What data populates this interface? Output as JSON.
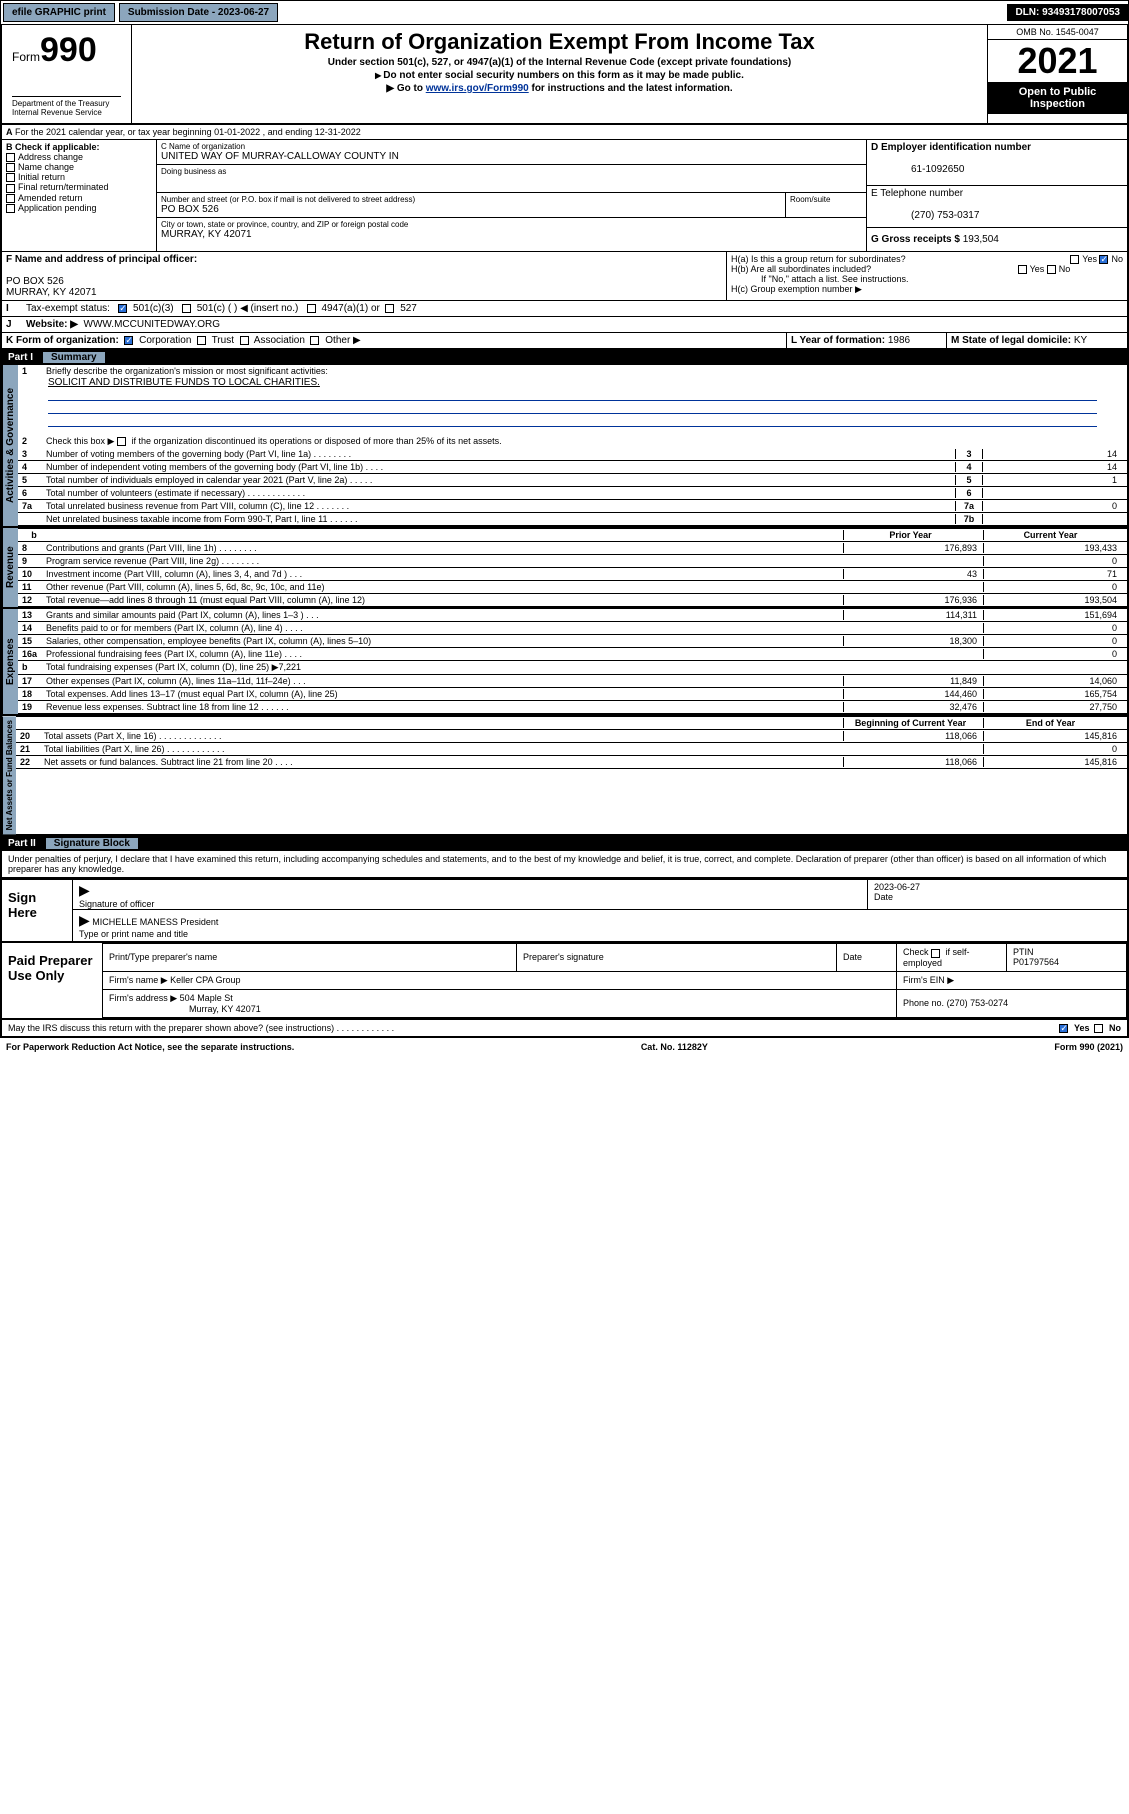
{
  "topbar": {
    "efile": "efile GRAPHIC print",
    "subdate_lbl": "Submission Date - 2023-06-27",
    "dln": "DLN: 93493178007053"
  },
  "header": {
    "form_word": "Form",
    "form_num": "990",
    "title": "Return of Organization Exempt From Income Tax",
    "sub1": "Under section 501(c), 527, or 4947(a)(1) of the Internal Revenue Code (except private foundations)",
    "sub2": "Do not enter social security numbers on this form as it may be made public.",
    "sub3_a": "Go to ",
    "sub3_link": "www.irs.gov/Form990",
    "sub3_b": " for instructions and the latest information.",
    "omb": "OMB No. 1545-0047",
    "year": "2021",
    "open": "Open to Public Inspection",
    "dept": "Department of the Treasury\nInternal Revenue Service"
  },
  "A": {
    "text": "For the 2021 calendar year, or tax year beginning 01-01-2022   , and ending 12-31-2022"
  },
  "B": {
    "label": "B Check if applicable:",
    "opts": [
      "Address change",
      "Name change",
      "Initial return",
      "Final return/terminated",
      "Amended return",
      "Application pending"
    ]
  },
  "C": {
    "name_lbl": "C Name of organization",
    "name": "UNITED WAY OF MURRAY-CALLOWAY COUNTY IN",
    "dba_lbl": "Doing business as",
    "street_lbl": "Number and street (or P.O. box if mail is not delivered to street address)",
    "room_lbl": "Room/suite",
    "street": "PO BOX 526",
    "city_lbl": "City or town, state or province, country, and ZIP or foreign postal code",
    "city": "MURRAY, KY  42071"
  },
  "D": {
    "lbl": "D Employer identification number",
    "val": "61-1092650"
  },
  "E": {
    "lbl": "E Telephone number",
    "val": "(270) 753-0317"
  },
  "G": {
    "lbl": "G Gross receipts $",
    "val": "193,504"
  },
  "F": {
    "lbl": "F Name and address of principal officer:",
    "l1": "PO BOX 526",
    "l2": "MURRAY, KY  42071"
  },
  "H": {
    "a": "H(a)  Is this a group return for subordinates?",
    "b": "H(b)  Are all subordinates included?",
    "note": "If \"No,\" attach a list. See instructions.",
    "c": "H(c)  Group exemption number ▶",
    "yes": "Yes",
    "no": "No"
  },
  "I": {
    "lbl": "Tax-exempt status:",
    "o1": "501(c)(3)",
    "o2": "501(c) (   ) ◀ (insert no.)",
    "o3": "4947(a)(1) or",
    "o4": "527"
  },
  "J": {
    "lbl": "Website: ▶",
    "val": "WWW.MCCUNITEDWAY.ORG"
  },
  "K": {
    "lbl": "K Form of organization:",
    "o1": "Corporation",
    "o2": "Trust",
    "o3": "Association",
    "o4": "Other ▶"
  },
  "L": {
    "lbl": "L Year of formation:",
    "val": "1986"
  },
  "M": {
    "lbl": "M State of legal domicile:",
    "val": "KY"
  },
  "part1": {
    "hdr": "Part I",
    "title": "Summary",
    "side_gov": "Activities & Governance",
    "side_rev": "Revenue",
    "side_exp": "Expenses",
    "side_net": "Net Assets or Fund Balances",
    "l1": "Briefly describe the organization's mission or most significant activities:",
    "l1v": "SOLICIT AND DISTRIBUTE FUNDS TO LOCAL CHARITIES.",
    "l2": "Check this box ▶        if the organization discontinued its operations or disposed of more than 25% of its net assets.",
    "lines_gov": [
      {
        "n": "3",
        "t": "Number of voting members of the governing body (Part VI, line 1a)  .   .   .   .   .   .   .   .",
        "b": "3",
        "v": "14"
      },
      {
        "n": "4",
        "t": "Number of independent voting members of the governing body (Part VI, line 1b)  .   .   .   .",
        "b": "4",
        "v": "14"
      },
      {
        "n": "5",
        "t": "Total number of individuals employed in calendar year 2021 (Part V, line 2a)   .   .   .   .   .",
        "b": "5",
        "v": "1"
      },
      {
        "n": "6",
        "t": "Total number of volunteers (estimate if necessary)  .   .   .   .   .   .   .   .   .   .   .   .",
        "b": "6",
        "v": ""
      },
      {
        "n": "7a",
        "t": "Total unrelated business revenue from Part VIII, column (C), line 12  .   .   .   .   .   .   .",
        "b": "7a",
        "v": "0"
      },
      {
        "n": "",
        "t": "Net unrelated business taxable income from Form 990-T, Part I, line 11  .   .   .   .   .   .",
        "b": "7b",
        "v": ""
      }
    ],
    "yr_hdr_b": "b",
    "prior": "Prior Year",
    "current": "Current Year",
    "lines_rev": [
      {
        "n": "8",
        "t": "Contributions and grants (Part VIII, line 1h)   .   .   .   .   .   .   .   .",
        "p": "176,893",
        "c": "193,433"
      },
      {
        "n": "9",
        "t": "Program service revenue (Part VIII, line 2g)   .   .   .   .   .   .   .   .",
        "p": "",
        "c": "0"
      },
      {
        "n": "10",
        "t": "Investment income (Part VIII, column (A), lines 3, 4, and 7d )   .   .   .",
        "p": "43",
        "c": "71"
      },
      {
        "n": "11",
        "t": "Other revenue (Part VIII, column (A), lines 5, 6d, 8c, 9c, 10c, and 11e)",
        "p": "",
        "c": "0"
      },
      {
        "n": "12",
        "t": "Total revenue—add lines 8 through 11 (must equal Part VIII, column (A), line 12)",
        "p": "176,936",
        "c": "193,504"
      }
    ],
    "lines_exp": [
      {
        "n": "13",
        "t": "Grants and similar amounts paid (Part IX, column (A), lines 1–3 )   .   .   .",
        "p": "114,311",
        "c": "151,694"
      },
      {
        "n": "14",
        "t": "Benefits paid to or for members (Part IX, column (A), line 4)   .   .   .   .",
        "p": "",
        "c": "0"
      },
      {
        "n": "15",
        "t": "Salaries, other compensation, employee benefits (Part IX, column (A), lines 5–10)",
        "p": "18,300",
        "c": "0"
      },
      {
        "n": "16a",
        "t": "Professional fundraising fees (Part IX, column (A), line 11e)   .   .   .   .",
        "p": "",
        "c": "0"
      },
      {
        "n": "b",
        "t": "Total fundraising expenses (Part IX, column (D), line 25) ▶7,221",
        "p": "SHADE",
        "c": "SHADE"
      },
      {
        "n": "17",
        "t": "Other expenses (Part IX, column (A), lines 11a–11d, 11f–24e)  .   .   .",
        "p": "11,849",
        "c": "14,060"
      },
      {
        "n": "18",
        "t": "Total expenses. Add lines 13–17 (must equal Part IX, column (A), line 25)",
        "p": "144,460",
        "c": "165,754"
      },
      {
        "n": "19",
        "t": "Revenue less expenses. Subtract line 18 from line 12   .   .   .   .   .   .",
        "p": "32,476",
        "c": "27,750"
      }
    ],
    "net_hdr_a": "Beginning of Current Year",
    "net_hdr_b": "End of Year",
    "lines_net": [
      {
        "n": "20",
        "t": "Total assets (Part X, line 16)  .   .   .   .   .   .   .   .   .   .   .   .   .",
        "p": "118,066",
        "c": "145,816"
      },
      {
        "n": "21",
        "t": "Total liabilities (Part X, line 26)  .   .   .   .   .   .   .   .   .   .   .   .",
        "p": "",
        "c": "0"
      },
      {
        "n": "22",
        "t": "Net assets or fund balances. Subtract line 21 from line 20   .   .   .   .",
        "p": "118,066",
        "c": "145,816"
      }
    ]
  },
  "part2": {
    "hdr": "Part II",
    "title": "Signature Block",
    "decl": "Under penalties of perjury, I declare that I have examined this return, including accompanying schedules and statements, and to the best of my knowledge and belief, it is true, correct, and complete. Declaration of preparer (other than officer) is based on all information of which preparer has any knowledge.",
    "sign_here": "Sign Here",
    "sig_officer": "Signature of officer",
    "sig_date": "Date",
    "sig_date_v": "2023-06-27",
    "name_title": "MICHELLE MANESS President",
    "name_title_lbl": "Type or print name and title",
    "paid": "Paid Preparer Use Only",
    "pt_name": "Print/Type preparer's name",
    "pp_sig": "Preparer's signature",
    "pp_date": "Date",
    "check_self": "Check        if self-employed",
    "ptin_lbl": "PTIN",
    "ptin": "P01797564",
    "firm_name_lbl": "Firm's name   ▶",
    "firm_name": "Keller CPA Group",
    "firm_ein": "Firm's EIN ▶",
    "firm_addr_lbl": "Firm's address ▶",
    "firm_addr": "504 Maple St",
    "firm_addr2": "Murray, KY  42071",
    "phone_lbl": "Phone no.",
    "phone": "(270) 753-0274",
    "may": "May the IRS discuss this return with the preparer shown above? (see instructions)   .   .   .   .   .   .   .   .   .   .   .   .",
    "yes": "Yes",
    "no": "No"
  },
  "footer": {
    "l": "For Paperwork Reduction Act Notice, see the separate instructions.",
    "c": "Cat. No. 11282Y",
    "r": "Form 990 (2021)"
  }
}
